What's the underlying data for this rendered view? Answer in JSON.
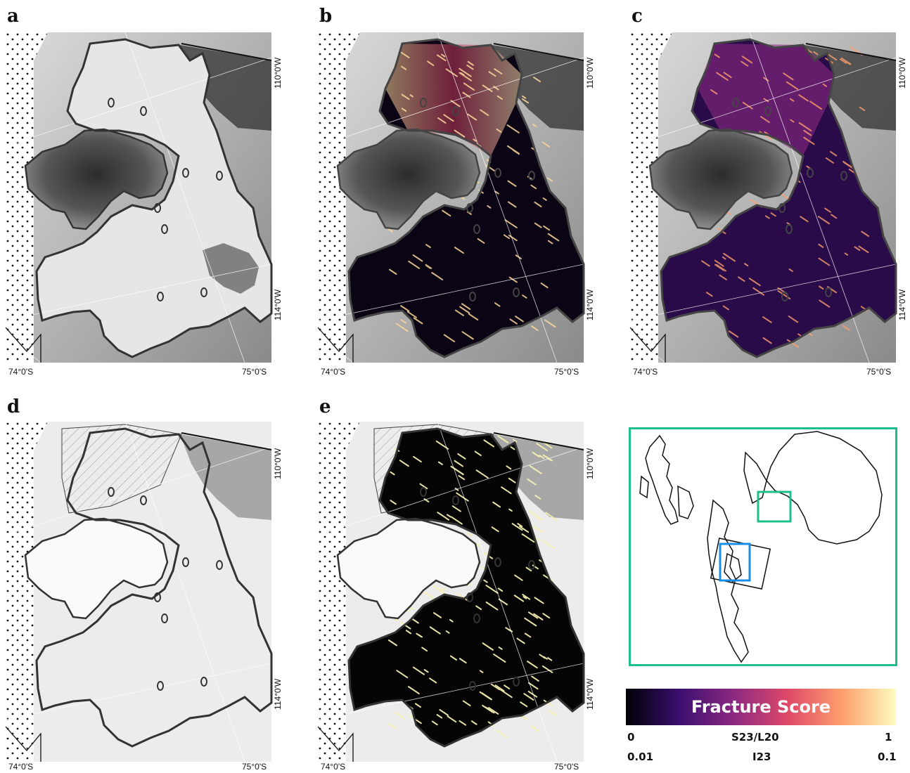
{
  "panels": [
    {
      "letter": "a",
      "style": "imagery"
    },
    {
      "letter": "b",
      "style": "fracture-s23"
    },
    {
      "letter": "c",
      "style": "fracture-i23"
    },
    {
      "letter": "d",
      "style": "hillshade"
    },
    {
      "letter": "e",
      "style": "binary-fracture"
    }
  ],
  "grid_labels": {
    "lon_top": "110°0'W",
    "lon_bottom": "114°0'W",
    "lat_left": "74°0'S",
    "lat_right": "75°0'S"
  },
  "colorbar": {
    "title": "Fracture Score",
    "colormap": [
      "#000004",
      "#3b0f70",
      "#8c2981",
      "#de4968",
      "#fe9f6d",
      "#fcfdbf"
    ],
    "row1": {
      "min": "0",
      "label": "S23/L20",
      "max": "1"
    },
    "row2": {
      "min": "0.01",
      "label": "I23",
      "max": "0.1"
    }
  },
  "locator": {
    "frame_color": "#1dbd8e",
    "highlight_color": "#1a8ee6",
    "outline_color": "#111111"
  },
  "colors": {
    "fracture_dark": "#0a0414",
    "fracture_bright": "#fbd89a",
    "binary_fracture": "#f5f0b0",
    "outline": "#333333"
  }
}
